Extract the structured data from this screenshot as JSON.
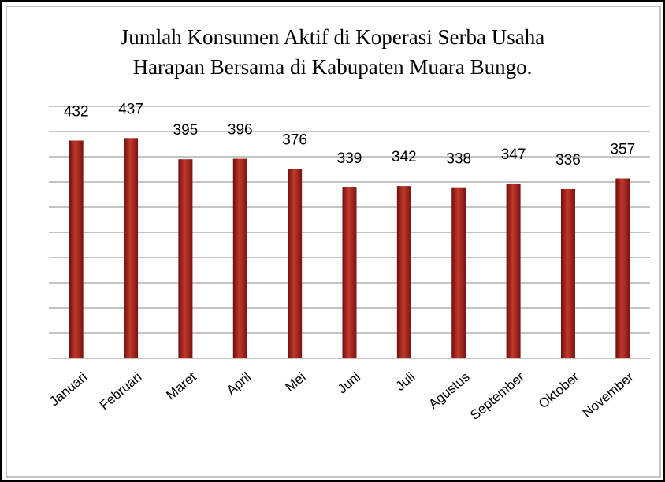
{
  "chart_data": {
    "type": "bar",
    "title": [
      "Jumlah Konsumen Aktif di Koperasi Serba Usaha",
      "Harapan Bersama di Kabupaten Muara Bungo."
    ],
    "categories": [
      "Januari",
      "Februari",
      "Maret",
      "April",
      "Mei",
      "Juni",
      "Juli",
      "Agustus",
      "September",
      "Oktober",
      "November"
    ],
    "values": [
      432,
      437,
      395,
      396,
      376,
      339,
      342,
      338,
      347,
      336,
      357
    ],
    "color": "#c0392b",
    "ylim": [
      0,
      500
    ],
    "yticks": [
      0,
      50,
      100,
      150,
      200,
      250,
      300,
      350,
      400,
      450,
      500
    ],
    "grid": true
  }
}
